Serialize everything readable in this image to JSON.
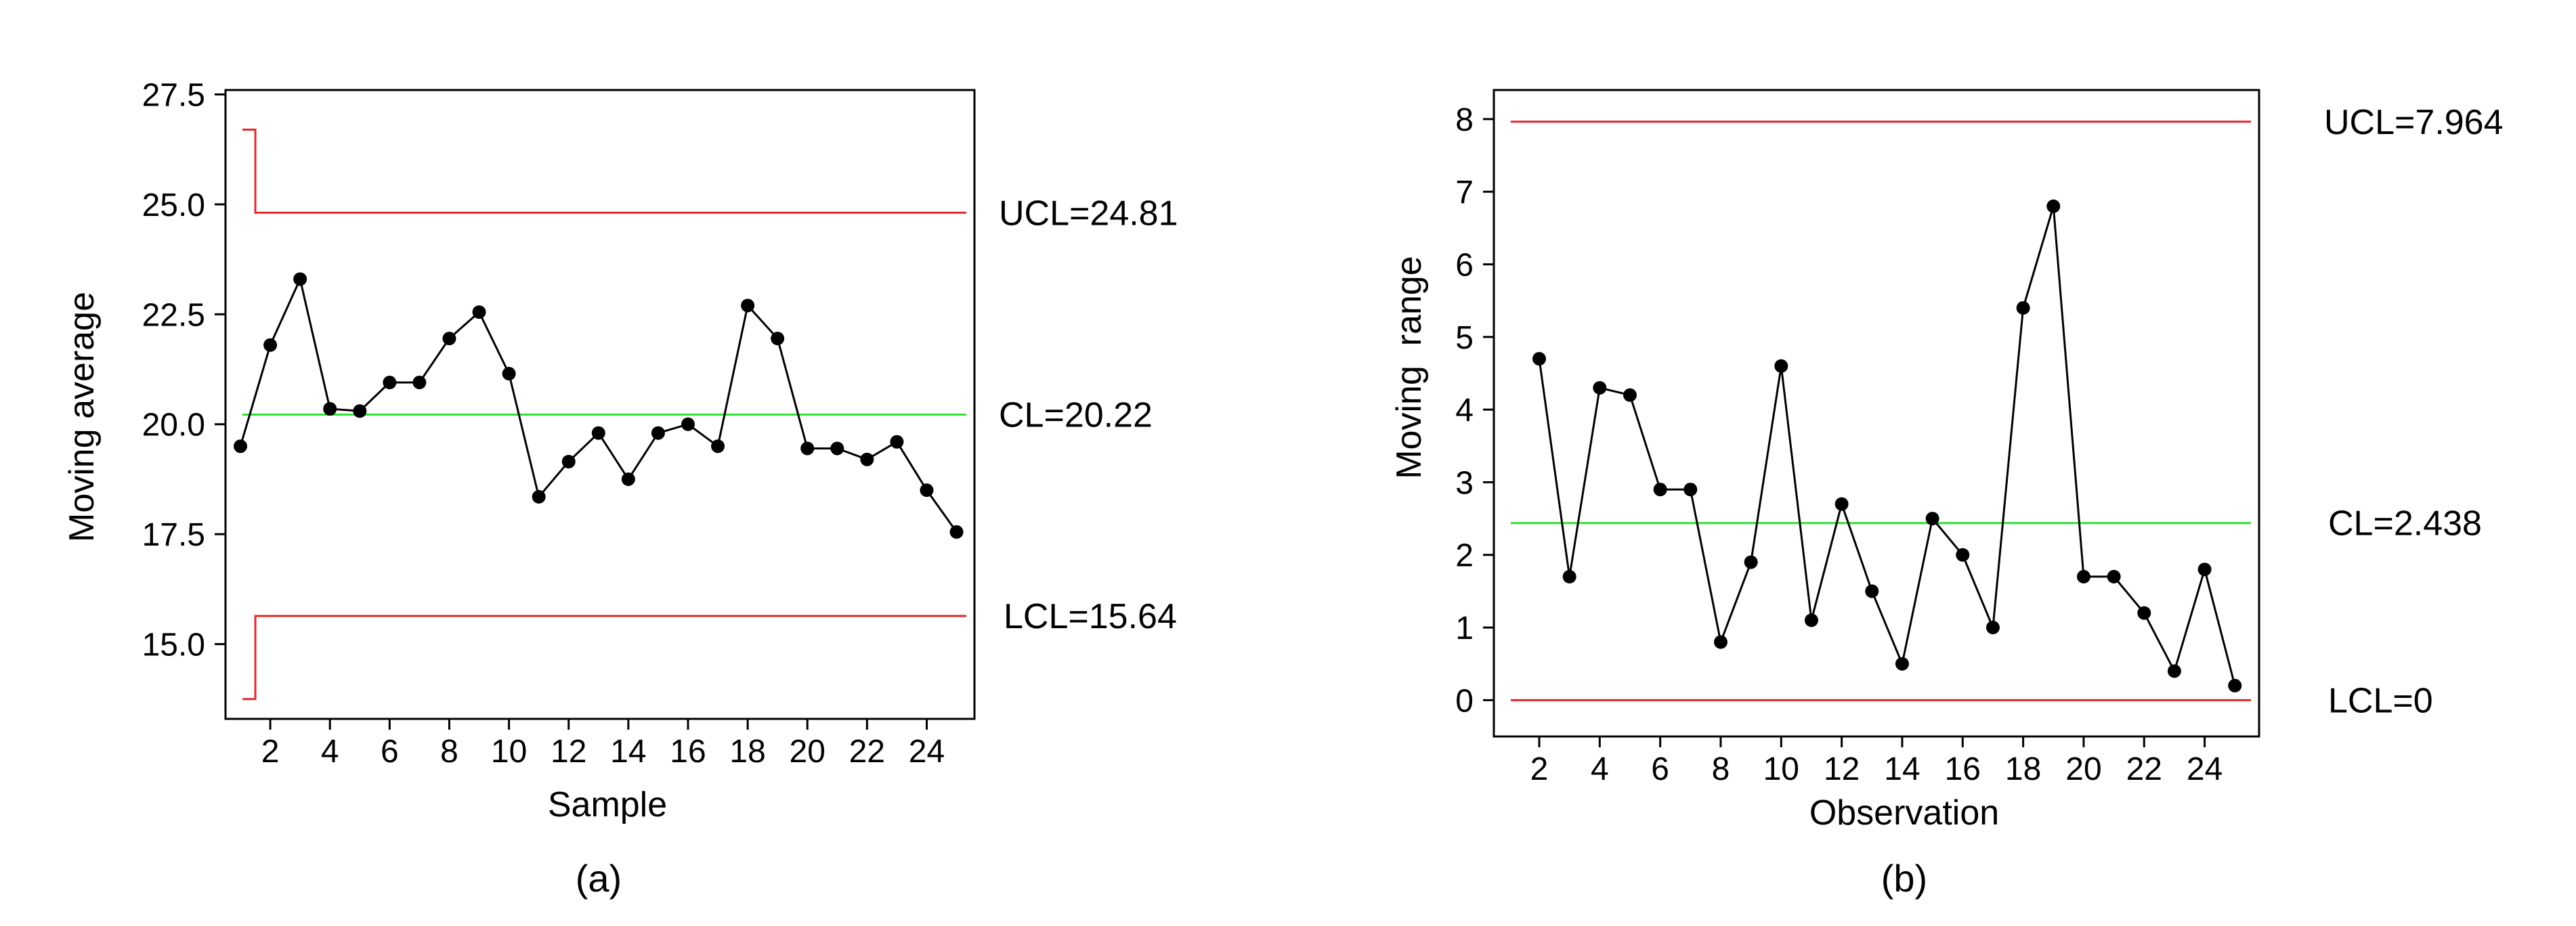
{
  "colors": {
    "limit": "#e0272b",
    "center": "#2ee32e",
    "series": "#000000"
  },
  "chart_data": [
    {
      "type": "line",
      "caption": "(a)",
      "xlabel": "Sample",
      "ylabel": "Moving average",
      "xlim": [
        0.5,
        25.6
      ],
      "ylim": [
        13.3,
        27.6
      ],
      "xticks": [
        2,
        4,
        6,
        8,
        10,
        12,
        14,
        16,
        18,
        20,
        22,
        24
      ],
      "xtick_labels": [
        "2",
        "4",
        "6",
        "8",
        "10",
        "12",
        "14",
        "16",
        "18",
        "20",
        "22",
        "24"
      ],
      "yticks": [
        15.0,
        17.5,
        20.0,
        22.5,
        25.0,
        27.5
      ],
      "ytick_labels": [
        "15.0",
        "17.5",
        "20.0",
        "22.5",
        "25.0",
        "27.5"
      ],
      "series": [
        {
          "name": "Moving average",
          "x": [
            1,
            2,
            3,
            4,
            5,
            6,
            7,
            8,
            9,
            10,
            11,
            12,
            13,
            14,
            15,
            16,
            17,
            18,
            19,
            20,
            21,
            22,
            23,
            24,
            25
          ],
          "values": [
            19.5,
            21.8,
            23.3,
            20.35,
            20.3,
            20.95,
            20.95,
            21.95,
            22.55,
            21.15,
            18.35,
            19.15,
            19.8,
            18.75,
            19.8,
            20.0,
            19.5,
            22.7,
            21.95,
            19.45,
            19.45,
            19.2,
            19.6,
            18.5,
            17.55
          ]
        }
      ],
      "ucl": {
        "label": "UCL=24.81",
        "value": 24.81,
        "first_value": 26.7,
        "step_x": 1.5
      },
      "lcl": {
        "label": "LCL=15.64",
        "value": 15.64,
        "first_value": 13.75,
        "step_x": 1.5
      },
      "cl": {
        "label": "CL=20.22",
        "value": 20.22
      }
    },
    {
      "type": "line",
      "caption": "(b)",
      "xlabel": "Observation",
      "ylabel": "Moving  range",
      "xlim": [
        0.5,
        25.8
      ],
      "ylim": [
        -0.5,
        8.4
      ],
      "xticks": [
        2,
        4,
        6,
        8,
        10,
        12,
        14,
        16,
        18,
        20,
        22,
        24
      ],
      "xtick_labels": [
        "2",
        "4",
        "6",
        "8",
        "10",
        "12",
        "14",
        "16",
        "18",
        "20",
        "22",
        "24"
      ],
      "yticks": [
        0,
        1,
        2,
        3,
        4,
        5,
        6,
        7,
        8
      ],
      "ytick_labels": [
        "0",
        "1",
        "2",
        "3",
        "4",
        "5",
        "6",
        "7",
        "8"
      ],
      "series": [
        {
          "name": "Moving range",
          "x": [
            2,
            3,
            4,
            5,
            6,
            7,
            8,
            9,
            10,
            11,
            12,
            13,
            14,
            15,
            16,
            17,
            18,
            19,
            20,
            21,
            22,
            23,
            24,
            25
          ],
          "values": [
            4.7,
            1.7,
            4.3,
            4.2,
            2.9,
            2.9,
            0.8,
            1.9,
            4.6,
            1.1,
            2.7,
            1.5,
            0.5,
            2.5,
            2.0,
            1.0,
            5.4,
            6.8,
            1.7,
            1.7,
            1.2,
            0.4,
            1.8,
            0.2
          ]
        }
      ],
      "ucl": {
        "label": "UCL=7.964",
        "value": 7.964
      },
      "lcl": {
        "label": "LCL=0",
        "value": 0
      },
      "cl": {
        "label": "CL=2.438",
        "value": 2.438
      }
    }
  ]
}
